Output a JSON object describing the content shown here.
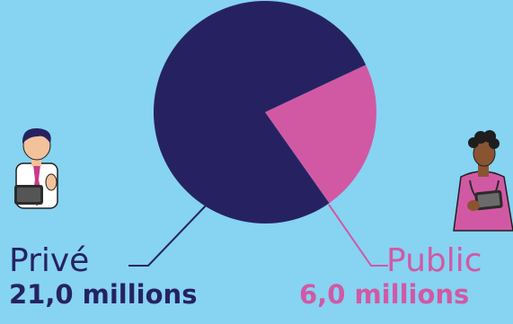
{
  "chart_data": {
    "type": "pie",
    "title": "",
    "slices": [
      {
        "label": "Privé",
        "value": 21.0,
        "value_label": "21,0 millions",
        "color": "#262262"
      },
      {
        "label": "Public",
        "value": 6.0,
        "value_label": "6,0 millions",
        "color": "#d159a4"
      }
    ]
  },
  "colors": {
    "background": "#86d3f2",
    "prive": "#262262",
    "public": "#d159a4"
  },
  "illustrations": {
    "left": "man-with-tablet-icon",
    "right": "nurse-with-tablet-icon"
  }
}
